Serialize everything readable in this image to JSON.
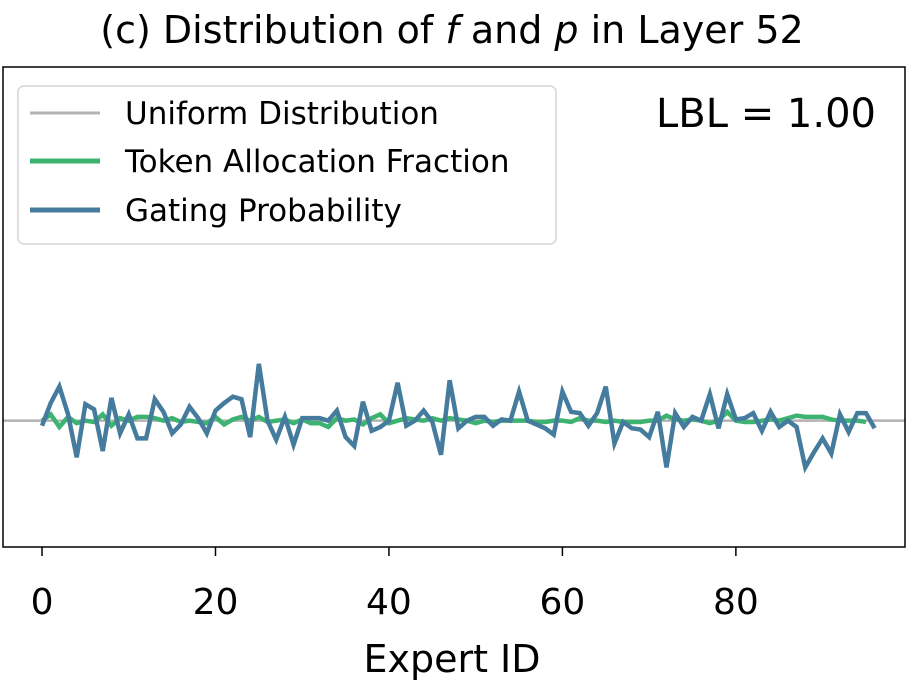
{
  "chart_data": {
    "type": "line",
    "title": {
      "prefix": "(c) Distribution of ",
      "var1": "f",
      "middle": " and ",
      "var2": "p",
      "suffix": " in Layer 52"
    },
    "xlabel": "Expert ID",
    "ylabel": "",
    "xlim": [
      -4.5,
      99.5
    ],
    "ylim": [
      -1.0,
      2.8
    ],
    "xticks": [
      0,
      20,
      40,
      60,
      80
    ],
    "yticks_visible": false,
    "grid": false,
    "legend_position": "top-left",
    "annotation": "LBL = 1.00",
    "uniform_value": 0.0,
    "series": [
      {
        "name": "Uniform Distribution",
        "color": "#b3b3b3",
        "style": "hline",
        "value": 0.0
      },
      {
        "name": "Token Allocation Fraction",
        "color": "#3cb371",
        "values": [
          0.0,
          0.05,
          -0.05,
          0.03,
          -0.02,
          0.0,
          -0.01,
          0.05,
          -0.04,
          0.02,
          0.0,
          0.03,
          0.03,
          0.02,
          0.0,
          0.02,
          -0.01,
          0.0,
          -0.01,
          -0.02,
          0.03,
          -0.03,
          0.01,
          0.03,
          0.0,
          0.03,
          -0.01,
          0.0,
          0.01,
          -0.02,
          0.01,
          -0.02,
          -0.02,
          -0.05,
          0.02,
          0.0,
          0.01,
          -0.03,
          0.02,
          0.05,
          -0.02,
          0.0,
          0.02,
          0.01,
          0.0,
          0.02,
          0.0,
          0.02,
          0.01,
          0.0,
          -0.02,
          0.0,
          -0.01,
          0.0,
          0.0,
          0.0,
          0.0,
          -0.01,
          -0.01,
          0.0,
          0.0,
          -0.01,
          0.02,
          0.0,
          0.0,
          -0.01,
          0.0,
          -0.01,
          -0.01,
          -0.01,
          0.0,
          0.0,
          0.04,
          0.01,
          0.0,
          0.01,
          0.0,
          -0.02,
          0.0,
          0.07,
          0.0,
          -0.01,
          -0.01,
          0.0,
          0.01,
          0.0,
          0.02,
          0.04,
          0.03,
          0.03,
          0.03,
          0.01,
          0.0,
          0.0,
          0.0,
          -0.01
        ]
      },
      {
        "name": "Gating Probability",
        "color": "#457b9d",
        "values": [
          -0.04,
          0.14,
          0.27,
          0.05,
          -0.29,
          0.13,
          0.09,
          -0.24,
          0.18,
          -0.1,
          0.05,
          -0.14,
          -0.14,
          0.17,
          0.07,
          -0.1,
          -0.03,
          0.11,
          0.02,
          -0.1,
          0.08,
          0.14,
          0.19,
          0.17,
          -0.13,
          0.45,
          0.0,
          -0.15,
          0.03,
          -0.19,
          0.02,
          0.02,
          0.02,
          0.0,
          0.08,
          -0.13,
          -0.2,
          0.15,
          -0.08,
          -0.05,
          0.0,
          0.3,
          -0.04,
          0.0,
          0.08,
          -0.01,
          -0.27,
          0.32,
          -0.06,
          0.0,
          0.03,
          0.03,
          -0.04,
          0.01,
          0.0,
          0.23,
          0.0,
          -0.03,
          -0.06,
          -0.11,
          0.23,
          0.07,
          0.06,
          -0.04,
          0.06,
          0.27,
          -0.18,
          -0.01,
          -0.06,
          -0.07,
          -0.13,
          0.07,
          -0.37,
          0.06,
          -0.05,
          0.03,
          0.0,
          0.21,
          -0.06,
          0.21,
          0.01,
          0.02,
          0.06,
          -0.08,
          0.07,
          -0.05,
          0.0,
          -0.05,
          -0.37,
          -0.25,
          -0.14,
          -0.26,
          0.05,
          -0.09,
          0.06,
          0.06,
          -0.06
        ]
      }
    ]
  }
}
